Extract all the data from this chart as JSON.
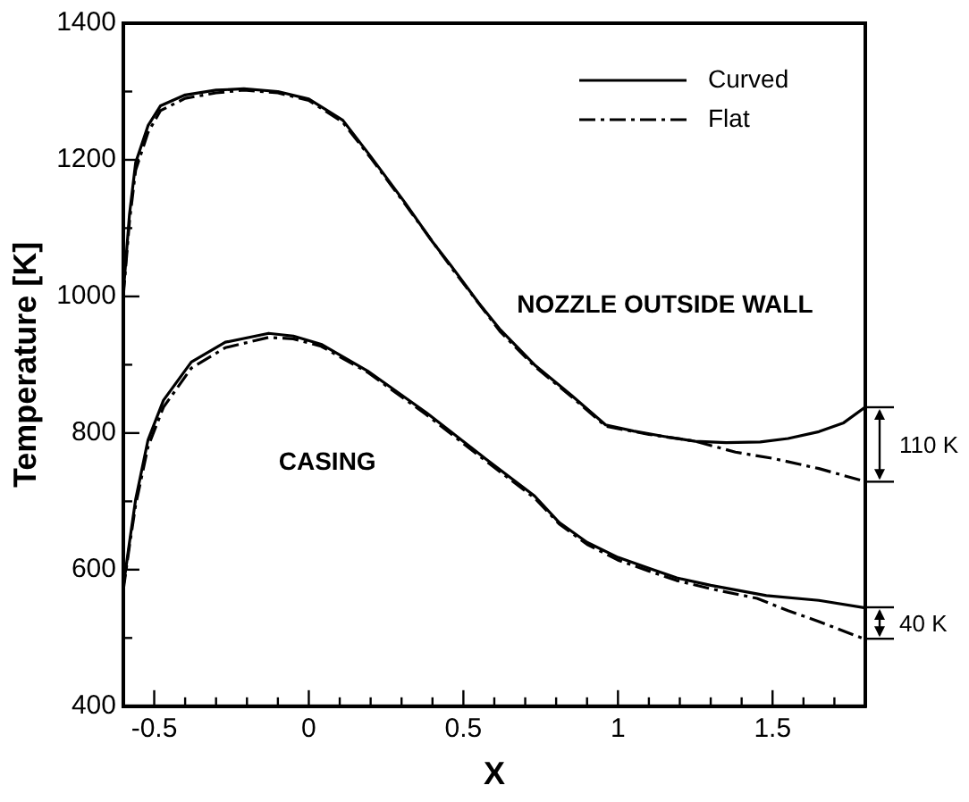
{
  "chart_data": {
    "type": "line",
    "xlabel": "X",
    "ylabel": "Temperature [K]",
    "xlim": [
      -0.6,
      1.8
    ],
    "ylim": [
      400,
      1400
    ],
    "xticks": [
      {
        "value": -0.6,
        "label": null
      },
      -0.5,
      {
        "value": -0.4,
        "label": null
      },
      {
        "value": -0.3,
        "label": null
      },
      {
        "value": -0.2,
        "label": null
      },
      {
        "value": -0.1,
        "label": null
      },
      0,
      {
        "value": 0.1,
        "label": null
      },
      {
        "value": 0.2,
        "label": null
      },
      {
        "value": 0.3,
        "label": null
      },
      {
        "value": 0.4,
        "label": null
      },
      0.5,
      {
        "value": 0.6,
        "label": null
      },
      {
        "value": 0.7,
        "label": null
      },
      {
        "value": 0.8,
        "label": null
      },
      {
        "value": 0.9,
        "label": null
      },
      1,
      {
        "value": 1.1,
        "label": null
      },
      {
        "value": 1.2,
        "label": null
      },
      {
        "value": 1.3,
        "label": null
      },
      {
        "value": 1.4,
        "label": null
      },
      1.5,
      {
        "value": 1.6,
        "label": null
      },
      {
        "value": 1.7,
        "label": null
      },
      {
        "value": 1.8,
        "label": null
      }
    ],
    "yticks": [
      400,
      {
        "value": 500,
        "label": null
      },
      600,
      {
        "value": 700,
        "label": null
      },
      800,
      {
        "value": 900,
        "label": null
      },
      1000,
      {
        "value": 1100,
        "label": null
      },
      1200,
      {
        "value": 1300,
        "label": null
      },
      1400
    ],
    "grid": false,
    "legend": "top right",
    "marker": "none",
    "series": [
      {
        "name": "Curved",
        "color": "#000000",
        "line_style": "solid",
        "x": [
          -0.6,
          -0.58,
          -0.56,
          -0.52,
          -0.48,
          -0.4,
          -0.3,
          -0.21,
          -0.1,
          0,
          0.05,
          0.11,
          0.2,
          0.31,
          0.4,
          0.46,
          0.55,
          0.62,
          0.73,
          0.85,
          0.96,
          1.05,
          1.15,
          1.25,
          1.35,
          1.46,
          1.55,
          1.65,
          1.73,
          1.8
        ],
        "values": [
          1005,
          1120,
          1196,
          1250,
          1279,
          1295,
          1302,
          1304,
          1300,
          1289,
          1275,
          1258,
          1205,
          1138,
          1080,
          1045,
          990,
          951,
          900,
          855,
          812,
          803,
          795,
          788,
          786,
          787,
          792,
          802,
          815,
          838
        ]
      },
      {
        "name": "Flat",
        "color": "#000000",
        "line_style": "dashed",
        "x": [
          -0.6,
          -0.58,
          -0.56,
          -0.52,
          -0.48,
          -0.4,
          -0.3,
          -0.21,
          -0.1,
          0,
          0.11,
          0.2,
          0.31,
          0.46,
          0.62,
          0.73,
          0.85,
          0.96,
          1.1,
          1.25,
          1.38,
          1.5,
          1.65,
          1.8
        ],
        "values": [
          1000,
          1110,
          1185,
          1240,
          1272,
          1290,
          1298,
          1302,
          1298,
          1287,
          1255,
          1203,
          1136,
          1043,
          948,
          898,
          853,
          810,
          798,
          788,
          772,
          763,
          748,
          729
        ]
      },
      {
        "color": "#000000",
        "line_style": "solid",
        "x": [
          -0.6,
          -0.58,
          -0.56,
          -0.52,
          -0.47,
          -0.38,
          -0.27,
          -0.13,
          -0.05,
          0.04,
          0.19,
          0.38,
          0.57,
          0.73,
          0.81,
          0.9,
          1.0,
          1.1,
          1.19,
          1.3,
          1.48,
          1.65,
          1.8
        ],
        "values": [
          575,
          640,
          703,
          790,
          848,
          904,
          933,
          946,
          942,
          930,
          891,
          830,
          763,
          708,
          669,
          640,
          618,
          602,
          588,
          577,
          562,
          555,
          544
        ]
      },
      {
        "color": "#000000",
        "line_style": "dashed",
        "x": [
          -0.6,
          -0.58,
          -0.56,
          -0.52,
          -0.47,
          -0.38,
          -0.27,
          -0.13,
          -0.05,
          0.04,
          0.19,
          0.38,
          0.57,
          0.73,
          0.81,
          0.9,
          1.0,
          1.1,
          1.19,
          1.3,
          1.45,
          1.55,
          1.65,
          1.8
        ],
        "values": [
          570,
          635,
          695,
          780,
          838,
          895,
          925,
          940,
          938,
          927,
          889,
          827,
          760,
          705,
          667,
          637,
          614,
          598,
          584,
          572,
          558,
          540,
          524,
          498
        ]
      }
    ],
    "annotations": [
      "NOZZLE OUTSIDE WALL",
      "CASING",
      "110 K",
      "40 K"
    ]
  }
}
